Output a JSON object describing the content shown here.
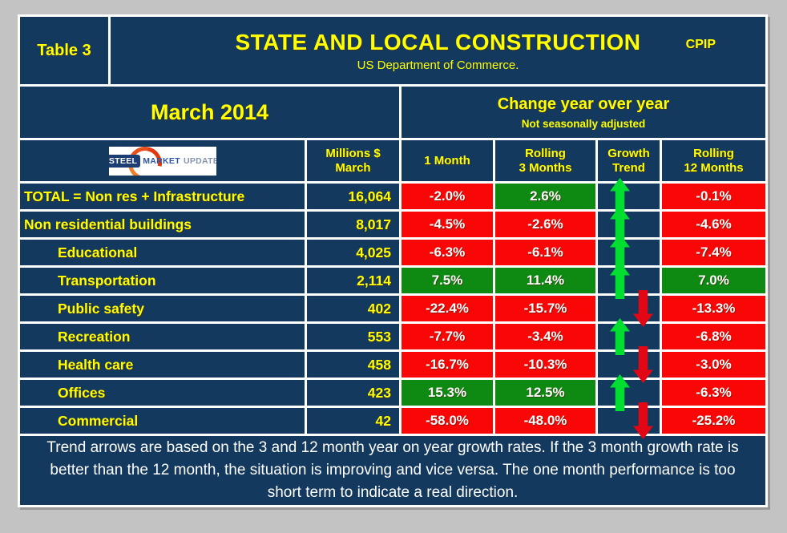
{
  "header": {
    "table_label": "Table 3",
    "title": "STATE AND LOCAL CONSTRUCTION",
    "title_suffix": "CPIP",
    "subtitle": "US Department of Commerce."
  },
  "period": {
    "month_label": "March 2014",
    "change_header": "Change year over year",
    "change_subheader": "Not seasonally adjusted"
  },
  "logo": {
    "steel": "STEEL",
    "market": "MARKET",
    "update": "UPDATE"
  },
  "columns": {
    "millions_l1": "Millions $",
    "millions_l2": "March",
    "one_month": "1 Month",
    "rolling3_l1": "Rolling",
    "rolling3_l2": "3 Months",
    "growth_l1": "Growth",
    "growth_l2": "Trend",
    "rolling12_l1": "Rolling",
    "rolling12_l2": "12 Months"
  },
  "rows": [
    {
      "label": "TOTAL = Non res + Infrastructure",
      "indent": "0",
      "millions": "16,064",
      "m1": "-2.0%",
      "m1_sign": "neg",
      "r3": "2.6%",
      "r3_sign": "pos",
      "trend": "up",
      "r12": "-0.1%",
      "r12_sign": "neg"
    },
    {
      "label": "Non residential buildings",
      "indent": "0",
      "millions": "8,017",
      "m1": "-4.5%",
      "m1_sign": "neg",
      "r3": "-2.6%",
      "r3_sign": "neg",
      "trend": "up",
      "r12": "-4.6%",
      "r12_sign": "neg"
    },
    {
      "label": "Educational",
      "indent": "1",
      "millions": "4,025",
      "m1": "-6.3%",
      "m1_sign": "neg",
      "r3": "-6.1%",
      "r3_sign": "neg",
      "trend": "up",
      "r12": "-7.4%",
      "r12_sign": "neg"
    },
    {
      "label": "Transportation",
      "indent": "1",
      "millions": "2,114",
      "m1": "7.5%",
      "m1_sign": "pos",
      "r3": "11.4%",
      "r3_sign": "pos",
      "trend": "up",
      "r12": "7.0%",
      "r12_sign": "pos"
    },
    {
      "label": "Public safety",
      "indent": "1",
      "millions": "402",
      "m1": "-22.4%",
      "m1_sign": "neg",
      "r3": "-15.7%",
      "r3_sign": "neg",
      "trend": "down",
      "r12": "-13.3%",
      "r12_sign": "neg"
    },
    {
      "label": "Recreation",
      "indent": "1",
      "millions": "553",
      "m1": "-7.7%",
      "m1_sign": "neg",
      "r3": "-3.4%",
      "r3_sign": "neg",
      "trend": "up",
      "r12": "-6.8%",
      "r12_sign": "neg"
    },
    {
      "label": "Health care",
      "indent": "1",
      "millions": "458",
      "m1": "-16.7%",
      "m1_sign": "neg",
      "r3": "-10.3%",
      "r3_sign": "neg",
      "trend": "down",
      "r12": "-3.0%",
      "r12_sign": "neg"
    },
    {
      "label": "Offices",
      "indent": "1",
      "millions": "423",
      "m1": "15.3%",
      "m1_sign": "pos",
      "r3": "12.5%",
      "r3_sign": "pos",
      "trend": "up",
      "r12": "-6.3%",
      "r12_sign": "neg"
    },
    {
      "label": "Commercial",
      "indent": "1",
      "millions": "42",
      "m1": "-58.0%",
      "m1_sign": "neg",
      "r3": "-48.0%",
      "r3_sign": "neg",
      "trend": "down",
      "r12": "-25.2%",
      "r12_sign": "neg"
    }
  ],
  "footer": {
    "text": "Trend arrows are based on the 3 and 12 month year on year growth rates. If the 3 month growth rate is better than the 12 month, the situation is improving and vice versa. The one month performance is too short term to indicate a real direction."
  },
  "colors": {
    "background": "#c3c3c3",
    "table_navy": "#14395f",
    "negative_red": "#f90606",
    "positive_green": "#0e8a12",
    "arrow_green": "#00df30",
    "arrow_red": "#e30615",
    "label_yellow": "#ffff00",
    "gridline_white": "#ffffff"
  },
  "chart_data": {
    "type": "table",
    "title": "STATE AND LOCAL CONSTRUCTION (CPIP) — March 2014, Change year over year, Not seasonally adjusted",
    "columns": [
      "Category",
      "Millions $ March",
      "1 Month %",
      "Rolling 3 Months %",
      "Growth Trend",
      "Rolling 12 Months %"
    ],
    "rows": [
      [
        "TOTAL = Non res + Infrastructure",
        16064,
        -2.0,
        2.6,
        "up",
        -0.1
      ],
      [
        "Non residential buildings",
        8017,
        -4.5,
        -2.6,
        "up",
        -4.6
      ],
      [
        "Educational",
        4025,
        -6.3,
        -6.1,
        "up",
        -7.4
      ],
      [
        "Transportation",
        2114,
        7.5,
        11.4,
        "up",
        7.0
      ],
      [
        "Public safety",
        402,
        -22.4,
        -15.7,
        "down",
        -13.3
      ],
      [
        "Recreation",
        553,
        -7.7,
        -3.4,
        "up",
        -6.8
      ],
      [
        "Health care",
        458,
        -16.7,
        -10.3,
        "down",
        -3.0
      ],
      [
        "Offices",
        423,
        15.3,
        12.5,
        "up",
        -6.3
      ],
      [
        "Commercial",
        42,
        -58.0,
        -48.0,
        "down",
        -25.2
      ]
    ]
  }
}
